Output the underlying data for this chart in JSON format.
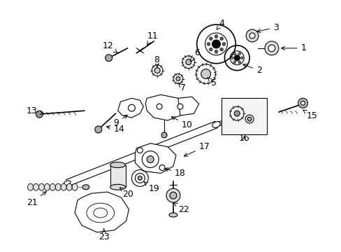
{
  "background_color": "#ffffff",
  "line_color": "#000000",
  "label_fontsize": 9,
  "figsize": [
    4.89,
    3.6
  ],
  "dpi": 100
}
